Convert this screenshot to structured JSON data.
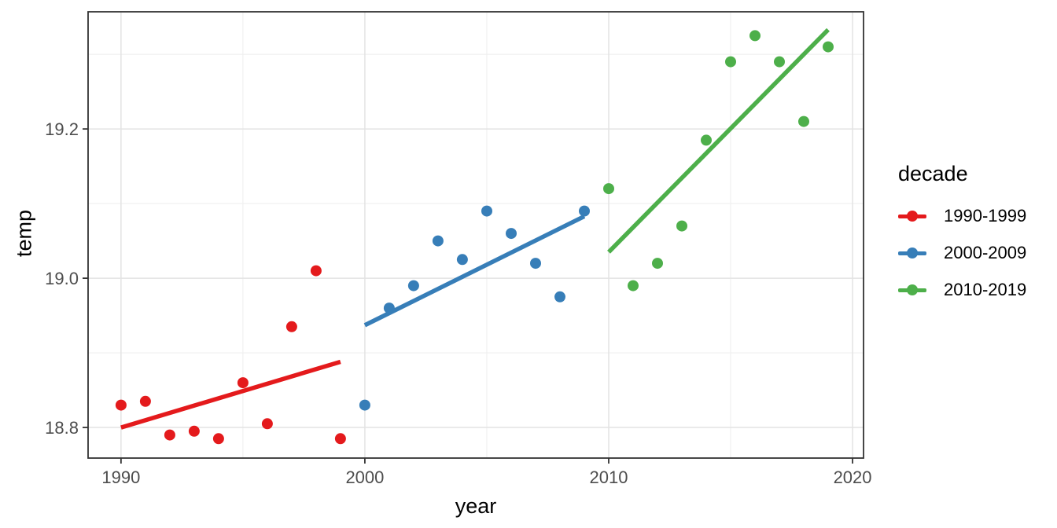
{
  "chart_data": {
    "type": "scatter",
    "title": "",
    "xlabel": "year",
    "ylabel": "temp",
    "legend_title": "decade",
    "legend_position": "right",
    "grid": true,
    "x_domain": [
      1988.65,
      2020.45
    ],
    "y_domain": [
      18.759,
      19.357
    ],
    "x_ticks_major": [
      1990,
      2000,
      2010,
      2020
    ],
    "x_tick_labels": [
      "1990",
      "2000",
      "2010",
      "2020"
    ],
    "x_ticks_minor": [
      1995,
      2005,
      2015
    ],
    "y_ticks_major": [
      18.8,
      19.0,
      19.2
    ],
    "y_tick_labels": [
      "18.8",
      "19.0",
      "19.2"
    ],
    "y_ticks_minor": [
      18.9,
      19.1,
      19.3
    ],
    "point_radius": 7,
    "trend_line_width": 5.5,
    "series": [
      {
        "name": "1990-1999",
        "color": "#E41A1C",
        "x": [
          1990,
          1991,
          1992,
          1993,
          1994,
          1995,
          1996,
          1997,
          1998,
          1999
        ],
        "y": [
          18.83,
          18.835,
          18.79,
          18.795,
          18.785,
          18.86,
          18.805,
          18.935,
          19.01,
          18.785
        ],
        "trend": {
          "x1": 1990,
          "y1": 18.8,
          "x2": 1999,
          "y2": 18.888
        }
      },
      {
        "name": "2000-2009",
        "color": "#377EB8",
        "x": [
          2000,
          2001,
          2002,
          2003,
          2004,
          2005,
          2006,
          2007,
          2008,
          2009
        ],
        "y": [
          18.83,
          18.96,
          18.99,
          19.05,
          19.025,
          19.09,
          19.06,
          19.02,
          18.975,
          19.09
        ],
        "trend": {
          "x1": 2000,
          "y1": 18.937,
          "x2": 2009,
          "y2": 19.083
        }
      },
      {
        "name": "2010-2019",
        "color": "#4DAF4A",
        "x": [
          2010,
          2011,
          2012,
          2013,
          2014,
          2015,
          2016,
          2017,
          2018,
          2019
        ],
        "y": [
          19.12,
          18.99,
          19.02,
          19.07,
          19.185,
          19.29,
          19.325,
          19.29,
          19.21,
          19.31
        ],
        "trend": {
          "x1": 2010,
          "y1": 19.035,
          "x2": 2019,
          "y2": 19.333
        }
      }
    ],
    "style_colors": {
      "panel_background": "#ffffff",
      "panel_border": "#333333",
      "grid_major": "#e3e3e3",
      "grid_minor": "#efefef",
      "tick_mark": "#333333",
      "tick_text": "#4d4d4d",
      "title_text": "#000000"
    }
  }
}
